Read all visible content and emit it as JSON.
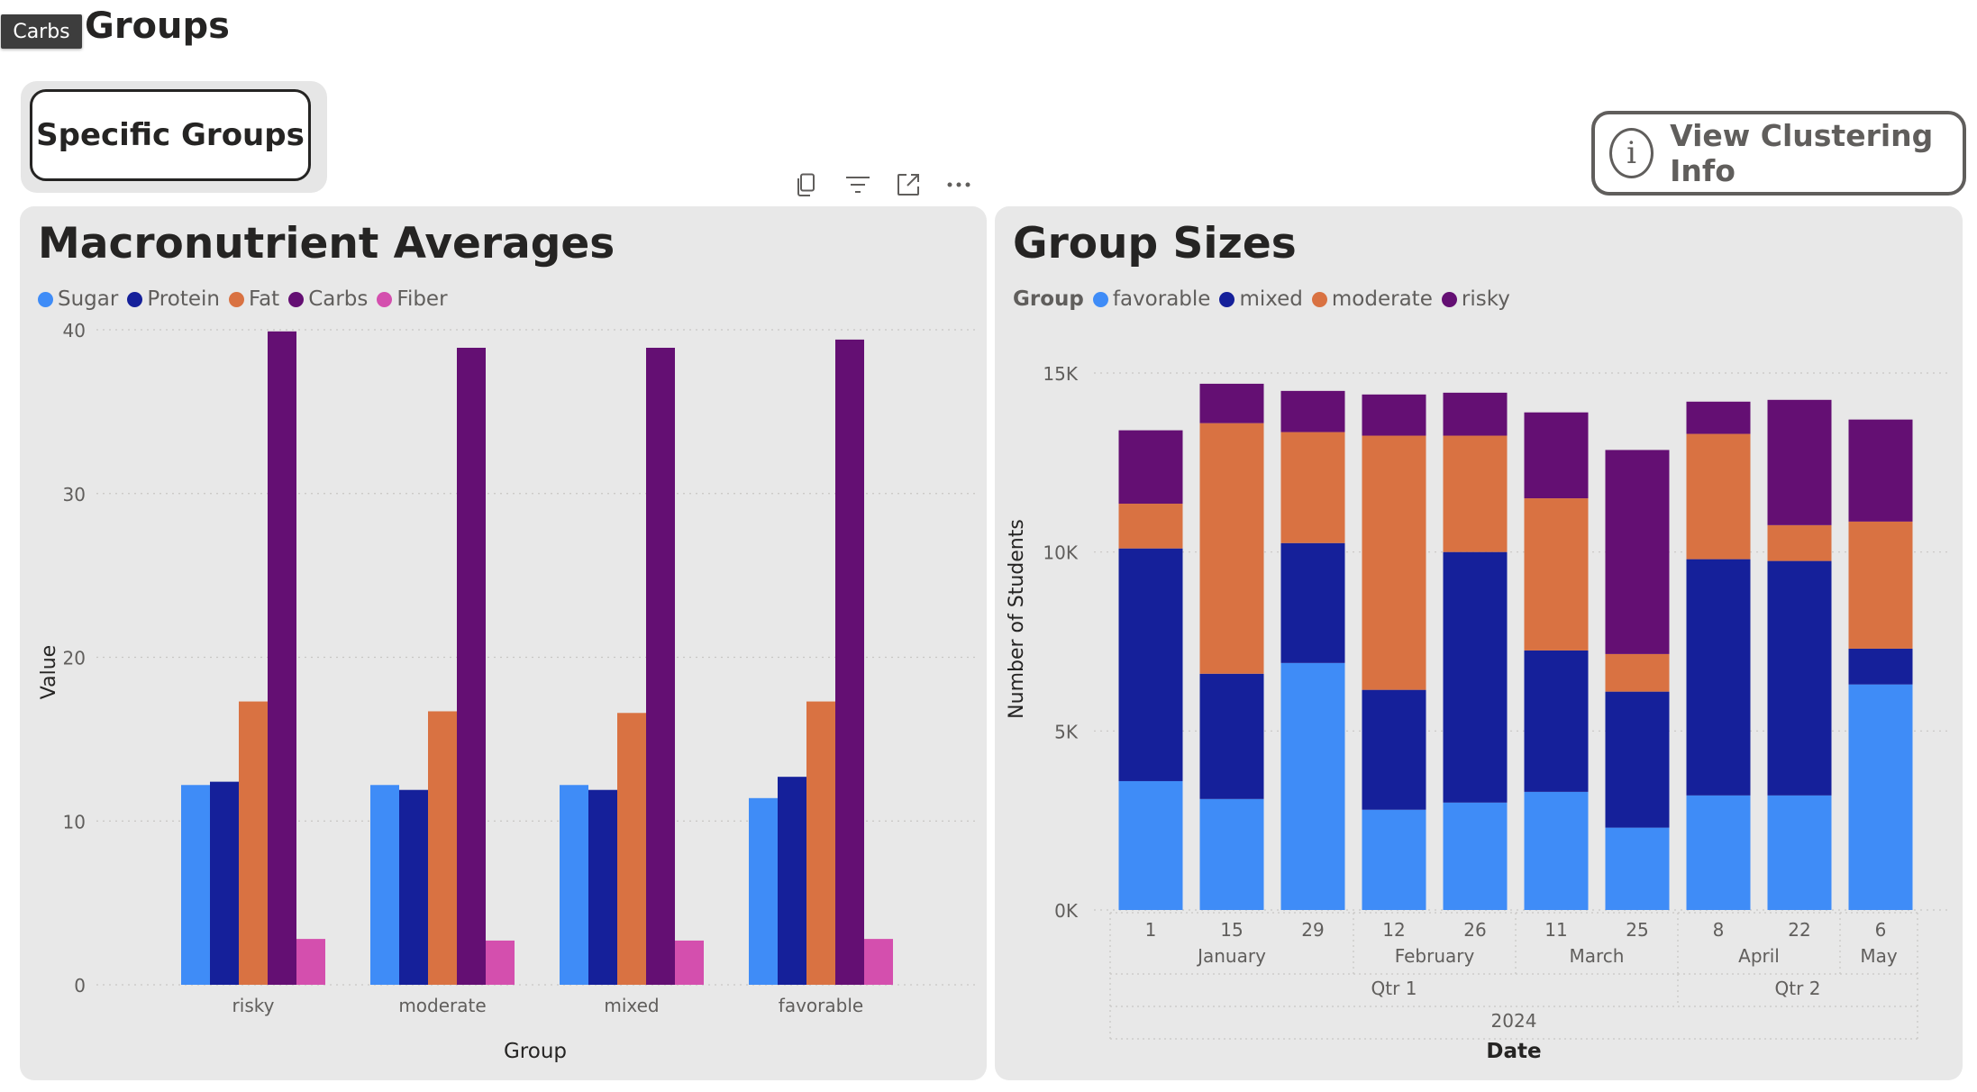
{
  "tooltip": {
    "text": "Carbs"
  },
  "page": {
    "title": "Groups"
  },
  "buttons": {
    "specific_groups": "Specific Groups",
    "view_clustering": "View Clustering Info",
    "info_glyph": "i"
  },
  "visual_header": {
    "icons": [
      "copy-icon",
      "filter-icon",
      "focus-mode-icon",
      "more-options-icon"
    ]
  },
  "colors": {
    "sugar": "#3f8cf7",
    "protein": "#15209a",
    "fat": "#d97242",
    "carbs": "#640f73",
    "fiber": "#d44fae",
    "panel_bg": "#e8e8e8"
  },
  "macro_panel": {
    "title": "Macronutrient Averages",
    "legend": [
      {
        "label": "Sugar",
        "color": "#3f8cf7"
      },
      {
        "label": "Protein",
        "color": "#15209a"
      },
      {
        "label": "Fat",
        "color": "#d97242"
      },
      {
        "label": "Carbs",
        "color": "#640f73"
      },
      {
        "label": "Fiber",
        "color": "#d44fae"
      }
    ]
  },
  "size_panel": {
    "title": "Group Sizes",
    "legend_title": "Group",
    "legend": [
      {
        "label": "favorable",
        "color": "#3f8cf7"
      },
      {
        "label": "mixed",
        "color": "#15209a"
      },
      {
        "label": "moderate",
        "color": "#d97242"
      },
      {
        "label": "risky",
        "color": "#640f73"
      }
    ]
  },
  "chart_data": [
    {
      "type": "bar",
      "title": "Macronutrient Averages",
      "xlabel": "Group",
      "ylabel": "Value",
      "categories": [
        "risky",
        "moderate",
        "mixed",
        "favorable"
      ],
      "ylim": [
        0,
        40
      ],
      "yticks": [
        0,
        10,
        20,
        30,
        40
      ],
      "grid": true,
      "legend_position": "top-left",
      "series": [
        {
          "name": "Sugar",
          "color": "#3f8cf7",
          "values": [
            12.2,
            12.2,
            12.2,
            11.4
          ]
        },
        {
          "name": "Protein",
          "color": "#15209a",
          "values": [
            12.4,
            11.9,
            11.9,
            12.7
          ]
        },
        {
          "name": "Fat",
          "color": "#d97242",
          "values": [
            17.3,
            16.7,
            16.6,
            17.3
          ]
        },
        {
          "name": "Carbs",
          "color": "#640f73",
          "values": [
            39.9,
            38.9,
            38.9,
            39.4
          ]
        },
        {
          "name": "Fiber",
          "color": "#d44fae",
          "values": [
            2.8,
            2.7,
            2.7,
            2.8
          ]
        }
      ]
    },
    {
      "type": "bar",
      "stacked": true,
      "title": "Group Sizes",
      "xlabel": "Date",
      "ylabel": "Number of Students",
      "ylim": [
        0,
        15000
      ],
      "yticks": [
        {
          "value": 0,
          "label": "0K"
        },
        {
          "value": 5000,
          "label": "5K"
        },
        {
          "value": 10000,
          "label": "10K"
        },
        {
          "value": 15000,
          "label": "15K"
        }
      ],
      "grid": true,
      "legend_position": "top-left",
      "x_hierarchy": {
        "days": [
          "1",
          "15",
          "29",
          "12",
          "26",
          "11",
          "25",
          "8",
          "22",
          "6"
        ],
        "months": [
          {
            "label": "January",
            "span": [
              0,
              2
            ]
          },
          {
            "label": "February",
            "span": [
              3,
              4
            ]
          },
          {
            "label": "March",
            "span": [
              5,
              6
            ]
          },
          {
            "label": "April",
            "span": [
              7,
              8
            ]
          },
          {
            "label": "May",
            "span": [
              9,
              9
            ]
          }
        ],
        "quarters": [
          {
            "label": "Qtr 1",
            "span": [
              0,
              6
            ]
          },
          {
            "label": "Qtr 2",
            "span": [
              7,
              9
            ]
          }
        ],
        "years": [
          {
            "label": "2024",
            "span": [
              0,
              9
            ]
          }
        ]
      },
      "series": [
        {
          "name": "favorable",
          "color": "#3f8cf7",
          "values": [
            3600,
            3100,
            6900,
            2800,
            3000,
            3300,
            2300,
            3200,
            3200,
            6300
          ]
        },
        {
          "name": "mixed",
          "color": "#15209a",
          "values": [
            6500,
            3500,
            3350,
            3350,
            7000,
            3950,
            3800,
            6600,
            6550,
            1000
          ]
        },
        {
          "name": "moderate",
          "color": "#d97242",
          "values": [
            1250,
            7000,
            3100,
            7100,
            3250,
            4250,
            1050,
            3500,
            1000,
            3550
          ]
        },
        {
          "name": "risky",
          "color": "#640f73",
          "values": [
            2050,
            1100,
            1150,
            1150,
            1200,
            2400,
            5700,
            900,
            3500,
            2850
          ]
        }
      ]
    }
  ]
}
